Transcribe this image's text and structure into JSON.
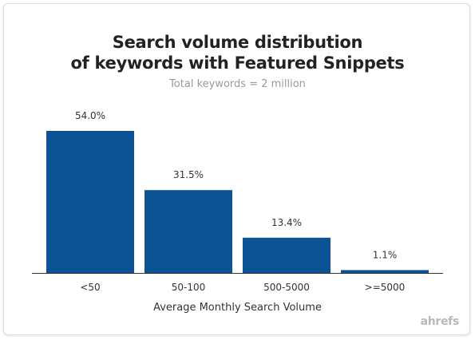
{
  "chart_data": {
    "type": "bar",
    "title_line1": "Search volume distribution",
    "title_line2": "of keywords with Featured Snippets",
    "subtitle": "Total keywords = 2 million",
    "xlabel": "Average Monthly Search Volume",
    "ylabel": "",
    "categories": [
      "<50",
      "50-100",
      "500-5000",
      ">=5000"
    ],
    "values": [
      54.0,
      31.5,
      13.4,
      1.1
    ],
    "value_labels": [
      "54.0%",
      "31.5%",
      "13.4%",
      "1.1%"
    ],
    "ylim": [
      0,
      54.0
    ],
    "grid": false,
    "legend": "none",
    "bar_color": "#0b5394",
    "axis_color": "#333333",
    "label_color": "#333333"
  },
  "brand": {
    "logo_text": "ahrefs"
  }
}
